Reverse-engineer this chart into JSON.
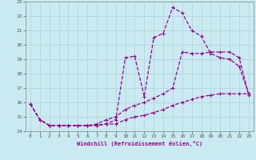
{
  "xlabel": "Windchill (Refroidissement éolien,°C)",
  "bg_color": "#c8eaf0",
  "line_color": "#990099",
  "grid_color": "#b8d8e0",
  "ylim": [
    14,
    23
  ],
  "xlim": [
    -0.5,
    23.5
  ],
  "yticks": [
    14,
    15,
    16,
    17,
    18,
    19,
    20,
    21,
    22,
    23
  ],
  "xticks": [
    0,
    1,
    2,
    3,
    4,
    5,
    6,
    7,
    8,
    9,
    10,
    11,
    12,
    13,
    14,
    15,
    16,
    17,
    18,
    19,
    20,
    21,
    22,
    23
  ],
  "line1_x": [
    0,
    1,
    2,
    3,
    4,
    5,
    6,
    7,
    8,
    9,
    10,
    11,
    12,
    13,
    14,
    15,
    16,
    17,
    18,
    19,
    20,
    21,
    22,
    23
  ],
  "line1_y": [
    15.9,
    14.8,
    14.4,
    14.4,
    14.4,
    14.4,
    14.4,
    14.4,
    14.5,
    14.8,
    19.1,
    19.2,
    16.4,
    20.5,
    20.8,
    22.6,
    22.2,
    21.0,
    20.6,
    19.4,
    19.1,
    19.0,
    18.5,
    16.6
  ],
  "line2_x": [
    0,
    1,
    2,
    3,
    4,
    5,
    6,
    7,
    8,
    9,
    10,
    11,
    12,
    13,
    14,
    15,
    16,
    17,
    18,
    19,
    20,
    21,
    22,
    23
  ],
  "line2_y": [
    15.9,
    14.8,
    14.4,
    14.4,
    14.4,
    14.4,
    14.4,
    14.5,
    14.8,
    15.0,
    15.5,
    15.8,
    16.0,
    16.3,
    16.6,
    17.0,
    19.5,
    19.4,
    19.4,
    19.5,
    19.5,
    19.5,
    19.1,
    16.5
  ],
  "line3_x": [
    0,
    1,
    2,
    3,
    4,
    5,
    6,
    7,
    8,
    9,
    10,
    11,
    12,
    13,
    14,
    15,
    16,
    17,
    18,
    19,
    20,
    21,
    22,
    23
  ],
  "line3_y": [
    15.9,
    14.8,
    14.4,
    14.4,
    14.4,
    14.4,
    14.4,
    14.4,
    14.5,
    14.5,
    14.8,
    15.0,
    15.1,
    15.3,
    15.5,
    15.8,
    16.0,
    16.2,
    16.4,
    16.5,
    16.6,
    16.6,
    16.6,
    16.6
  ]
}
